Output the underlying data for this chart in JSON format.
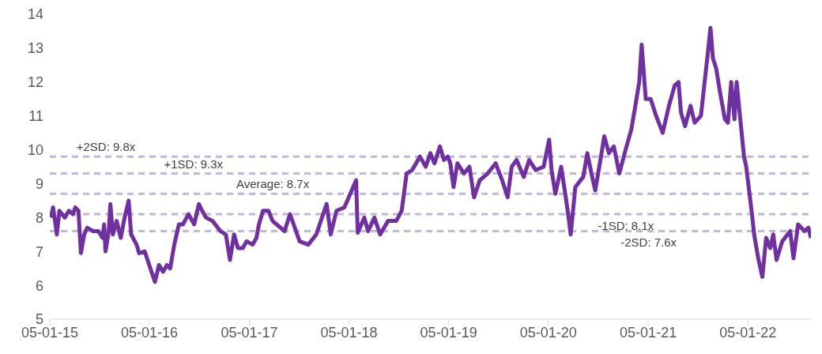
{
  "chart_data": {
    "type": "line",
    "xlim": [
      "2015-01-05",
      "2022-08-24"
    ],
    "xticks": [
      {
        "value": "2015-01-05",
        "label": "05-01-15"
      },
      {
        "value": "2016-01-05",
        "label": "05-01-16"
      },
      {
        "value": "2017-01-05",
        "label": "05-01-17"
      },
      {
        "value": "2018-01-05",
        "label": "05-01-18"
      },
      {
        "value": "2019-01-05",
        "label": "05-01-19"
      },
      {
        "value": "2020-01-05",
        "label": "05-01-20"
      },
      {
        "value": "2021-01-05",
        "label": "05-01-21"
      },
      {
        "value": "2022-01-05",
        "label": "05-01-22"
      }
    ],
    "ylim": [
      5,
      14
    ],
    "yticks": [
      5,
      6,
      7,
      8,
      9,
      10,
      11,
      12,
      13,
      14
    ],
    "grid": false,
    "legend": false,
    "marker": "none",
    "line_style": "solid",
    "x": [
      "2015-01-08",
      "2015-01-17",
      "2015-01-31",
      "2015-02-09",
      "2015-03-01",
      "2015-03-16",
      "2015-03-31",
      "2015-04-08",
      "2015-04-20",
      "2015-04-29",
      "2015-05-11",
      "2015-05-22",
      "2015-06-12",
      "2015-07-02",
      "2015-07-17",
      "2015-07-23",
      "2015-07-28",
      "2015-08-09",
      "2015-08-15",
      "2015-08-24",
      "2015-09-07",
      "2015-09-22",
      "2015-10-06",
      "2015-10-21",
      "2015-10-30",
      "2015-11-19",
      "2015-11-28",
      "2015-12-19",
      "2015-12-31",
      "2016-01-25",
      "2016-02-09",
      "2016-02-24",
      "2016-03-09",
      "2016-03-21",
      "2016-04-05",
      "2016-04-22",
      "2016-05-07",
      "2016-05-27",
      "2016-06-17",
      "2016-07-04",
      "2016-07-16",
      "2016-07-30",
      "2016-08-23",
      "2016-09-21",
      "2016-10-11",
      "2016-10-26",
      "2016-11-10",
      "2016-11-24",
      "2016-12-12",
      "2016-12-26",
      "2017-01-17",
      "2017-01-31",
      "2017-02-09",
      "2017-02-24",
      "2017-03-16",
      "2017-03-31",
      "2017-05-14",
      "2017-06-03",
      "2017-07-08",
      "2017-08-09",
      "2017-09-07",
      "2017-10-15",
      "2017-10-30",
      "2017-11-20",
      "2017-12-19",
      "2018-01-31",
      "2018-02-06",
      "2018-03-02",
      "2018-03-16",
      "2018-04-08",
      "2018-04-29",
      "2018-05-28",
      "2018-06-27",
      "2018-07-17",
      "2018-08-04",
      "2018-08-24",
      "2018-09-22",
      "2018-10-13",
      "2018-10-30",
      "2018-11-14",
      "2018-12-04",
      "2018-12-19",
      "2019-01-02",
      "2019-01-11",
      "2019-01-23",
      "2019-02-06",
      "2019-03-02",
      "2019-03-22",
      "2019-04-08",
      "2019-04-29",
      "2019-05-28",
      "2019-06-26",
      "2019-07-20",
      "2019-08-09",
      "2019-08-24",
      "2019-09-11",
      "2019-10-07",
      "2019-10-27",
      "2019-11-20",
      "2019-12-19",
      "2020-01-08",
      "2020-01-17",
      "2020-01-31",
      "2020-02-21",
      "2020-03-09",
      "2020-03-21",
      "2020-03-27",
      "2020-04-13",
      "2020-05-12",
      "2020-05-27",
      "2020-06-11",
      "2020-06-25",
      "2020-07-16",
      "2020-07-28",
      "2020-08-14",
      "2020-09-01",
      "2020-09-21",
      "2020-10-14",
      "2020-11-04",
      "2020-11-19",
      "2020-12-03",
      "2020-12-12",
      "2020-12-27",
      "2021-01-14",
      "2021-02-03",
      "2021-02-27",
      "2021-03-22",
      "2021-04-12",
      "2021-04-26",
      "2021-05-05",
      "2021-05-20",
      "2021-06-09",
      "2021-06-24",
      "2021-07-17",
      "2021-08-01",
      "2021-08-12",
      "2021-08-21",
      "2021-08-30",
      "2021-09-11",
      "2021-09-25",
      "2021-10-13",
      "2021-10-24",
      "2021-11-05",
      "2021-11-17",
      "2021-11-25",
      "2021-12-07",
      "2021-12-22",
      "2021-12-30",
      "2022-01-08",
      "2022-01-20",
      "2022-01-28",
      "2022-02-12",
      "2022-02-27",
      "2022-03-13",
      "2022-03-28",
      "2022-04-08",
      "2022-04-20",
      "2022-05-11",
      "2022-06-09",
      "2022-06-21",
      "2022-07-08",
      "2022-07-31",
      "2022-08-15",
      "2022-08-24"
    ],
    "series": [
      {
        "color": "#7030a0",
        "values": [
          8.0,
          8.3,
          7.5,
          8.2,
          8.0,
          8.2,
          8.1,
          8.3,
          8.2,
          6.95,
          7.5,
          7.7,
          7.6,
          7.6,
          7.4,
          7.8,
          7.0,
          7.6,
          8.4,
          7.5,
          7.9,
          7.4,
          8.0,
          8.5,
          7.5,
          7.2,
          6.95,
          7.0,
          6.7,
          6.1,
          6.6,
          6.4,
          6.6,
          6.5,
          7.2,
          7.8,
          7.8,
          8.1,
          7.8,
          8.4,
          8.2,
          8.0,
          7.9,
          7.6,
          7.5,
          6.75,
          7.5,
          7.1,
          7.1,
          7.3,
          7.2,
          7.4,
          7.8,
          8.2,
          8.2,
          7.9,
          7.6,
          8.1,
          7.3,
          7.2,
          7.5,
          8.4,
          7.5,
          8.2,
          8.3,
          9.1,
          7.55,
          8.0,
          7.6,
          8.0,
          7.5,
          7.9,
          7.9,
          8.2,
          9.3,
          9.4,
          9.8,
          9.5,
          9.9,
          9.6,
          10.1,
          9.7,
          9.8,
          9.6,
          8.9,
          9.6,
          9.3,
          9.5,
          8.6,
          9.1,
          9.3,
          9.6,
          9.1,
          8.6,
          9.5,
          9.7,
          9.2,
          9.7,
          9.4,
          9.5,
          10.3,
          9.4,
          8.7,
          9.5,
          8.6,
          7.9,
          7.5,
          8.9,
          9.2,
          9.9,
          9.3,
          8.8,
          9.8,
          10.4,
          9.9,
          10.1,
          9.3,
          10.0,
          10.6,
          11.3,
          12.0,
          13.1,
          11.5,
          11.5,
          11.0,
          10.5,
          11.3,
          11.9,
          12.0,
          11.1,
          10.7,
          11.3,
          10.8,
          11.0,
          12.1,
          12.9,
          13.6,
          12.7,
          12.4,
          11.7,
          10.9,
          10.8,
          12.0,
          10.9,
          12.0,
          11.0,
          9.8,
          9.5,
          8.9,
          8.1,
          7.5,
          6.8,
          6.25,
          7.4,
          7.1,
          7.5,
          6.75,
          7.3,
          7.6,
          6.8,
          7.8,
          7.6,
          7.7,
          7.4
        ]
      }
    ],
    "ref_lines": [
      {
        "axis": "y",
        "value": 9.8,
        "label": "+2SD: 9.8x",
        "color": "#c3b6d8",
        "line_style": "dashed"
      },
      {
        "axis": "y",
        "value": 9.3,
        "label": "+1SD: 9.3x",
        "color": "#c3b6d8",
        "line_style": "dashed"
      },
      {
        "axis": "y",
        "value": 8.7,
        "label": "Average: 8.7x",
        "color": "#c3b6d8",
        "line_style": "dashed"
      },
      {
        "axis": "y",
        "value": 8.1,
        "label": "-1SD: 8.1x",
        "color": "#c3b6d8",
        "line_style": "dashed"
      },
      {
        "axis": "y",
        "value": 7.6,
        "label": "-2SD: 7.6x",
        "color": "#c3b6d8",
        "line_style": "dashed"
      }
    ]
  }
}
